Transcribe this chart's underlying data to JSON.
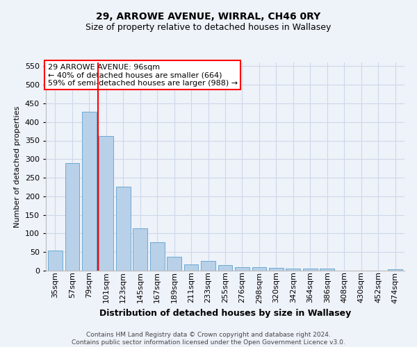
{
  "title": "29, ARROWE AVENUE, WIRRAL, CH46 0RY",
  "subtitle": "Size of property relative to detached houses in Wallasey",
  "xlabel": "Distribution of detached houses by size in Wallasey",
  "ylabel": "Number of detached properties",
  "footer_line1": "Contains HM Land Registry data © Crown copyright and database right 2024.",
  "footer_line2": "Contains public sector information licensed under the Open Government Licence v3.0.",
  "annotation_line1": "29 ARROWE AVENUE: 96sqm",
  "annotation_line2": "← 40% of detached houses are smaller (664)",
  "annotation_line3": "59% of semi-detached houses are larger (988) →",
  "bar_labels": [
    "35sqm",
    "57sqm",
    "79sqm",
    "101sqm",
    "123sqm",
    "145sqm",
    "167sqm",
    "189sqm",
    "211sqm",
    "233sqm",
    "255sqm",
    "276sqm",
    "298sqm",
    "320sqm",
    "342sqm",
    "364sqm",
    "386sqm",
    "408sqm",
    "430sqm",
    "452sqm",
    "474sqm"
  ],
  "bar_values": [
    55,
    290,
    428,
    363,
    225,
    113,
    77,
    38,
    17,
    27,
    15,
    10,
    10,
    8,
    5,
    5,
    5,
    0,
    0,
    0,
    4
  ],
  "bar_color": "#b8d0e8",
  "bar_edge_color": "#6aaad4",
  "grid_color": "#cdd8ea",
  "vline_x": 2.5,
  "vline_color": "red",
  "ylim": [
    0,
    560
  ],
  "yticks": [
    0,
    50,
    100,
    150,
    200,
    250,
    300,
    350,
    400,
    450,
    500,
    550
  ],
  "bg_color": "#eef2f9",
  "annotation_box_color": "white",
  "annotation_box_edge": "red",
  "title_fontsize": 10,
  "subtitle_fontsize": 9,
  "ylabel_fontsize": 8,
  "xlabel_fontsize": 9,
  "tick_fontsize": 8,
  "ann_fontsize": 8,
  "footer_fontsize": 6.5
}
